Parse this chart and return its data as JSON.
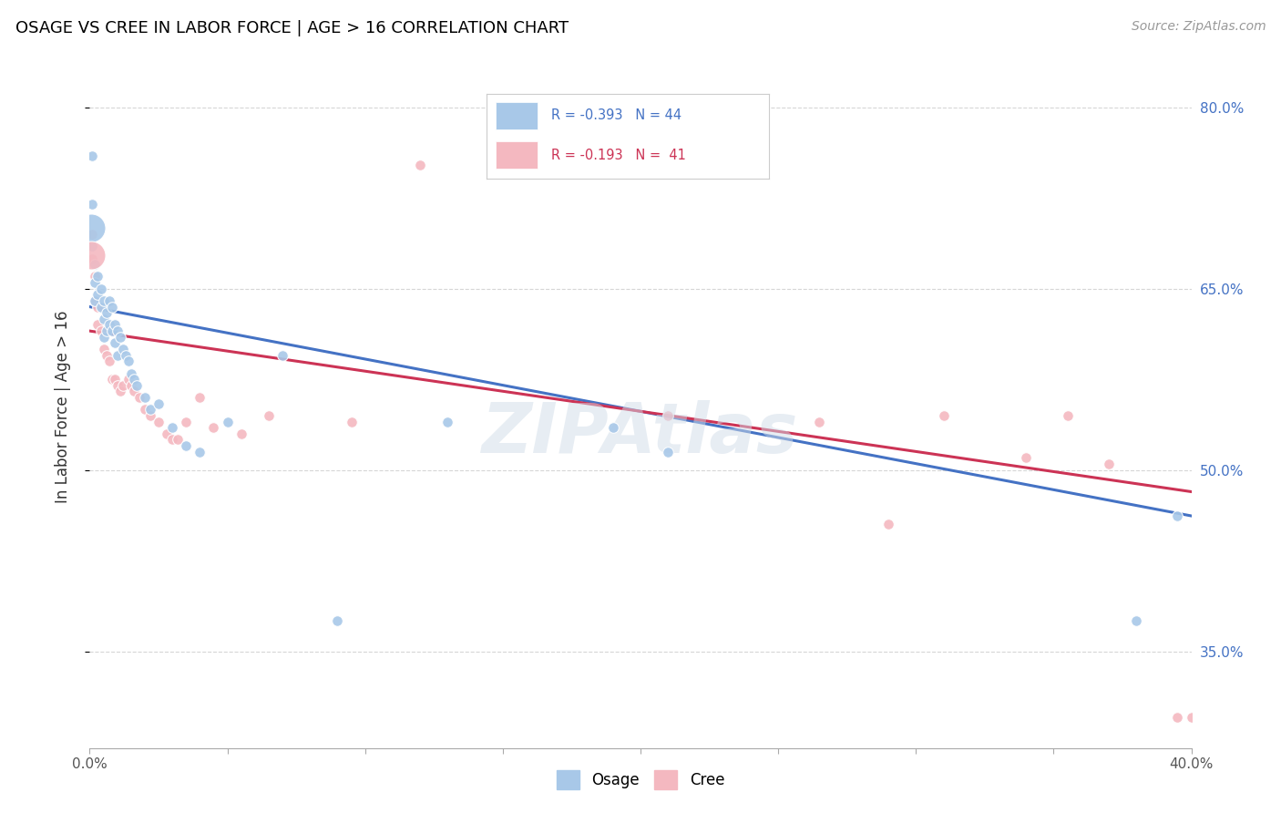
{
  "title": "OSAGE VS CREE IN LABOR FORCE | AGE > 16 CORRELATION CHART",
  "source": "Source: ZipAtlas.com",
  "ylabel": "In Labor Force | Age > 16",
  "xlim": [
    0.0,
    0.4
  ],
  "ylim": [
    0.27,
    0.835
  ],
  "xticks": [
    0.0,
    0.05,
    0.1,
    0.15,
    0.2,
    0.25,
    0.3,
    0.35,
    0.4
  ],
  "ytick_values": [
    0.35,
    0.5,
    0.65,
    0.8
  ],
  "ytick_labels": [
    "35.0%",
    "50.0%",
    "65.0%",
    "80.0%"
  ],
  "osage_color": "#a8c8e8",
  "cree_color": "#f4b8c0",
  "osage_line_color": "#4472c4",
  "cree_line_color": "#cc3355",
  "background_color": "#ffffff",
  "grid_color": "#cccccc",
  "title_color": "#000000",
  "right_tick_color": "#4472c4",
  "osage_x": [
    0.001,
    0.001,
    0.001,
    0.002,
    0.002,
    0.002,
    0.003,
    0.003,
    0.004,
    0.004,
    0.005,
    0.005,
    0.005,
    0.006,
    0.006,
    0.007,
    0.007,
    0.008,
    0.008,
    0.009,
    0.009,
    0.01,
    0.01,
    0.011,
    0.012,
    0.013,
    0.014,
    0.015,
    0.016,
    0.017,
    0.02,
    0.022,
    0.025,
    0.03,
    0.035,
    0.04,
    0.05,
    0.07,
    0.09,
    0.13,
    0.19,
    0.21,
    0.38,
    0.395
  ],
  "osage_y": [
    0.76,
    0.72,
    0.685,
    0.67,
    0.655,
    0.64,
    0.66,
    0.645,
    0.65,
    0.635,
    0.625,
    0.64,
    0.61,
    0.63,
    0.615,
    0.64,
    0.62,
    0.635,
    0.615,
    0.62,
    0.605,
    0.615,
    0.595,
    0.61,
    0.6,
    0.595,
    0.59,
    0.58,
    0.575,
    0.57,
    0.56,
    0.55,
    0.555,
    0.535,
    0.52,
    0.515,
    0.54,
    0.595,
    0.375,
    0.54,
    0.535,
    0.515,
    0.375,
    0.462
  ],
  "cree_x": [
    0.001,
    0.001,
    0.002,
    0.002,
    0.003,
    0.003,
    0.004,
    0.005,
    0.006,
    0.007,
    0.008,
    0.009,
    0.01,
    0.011,
    0.012,
    0.014,
    0.015,
    0.016,
    0.018,
    0.02,
    0.022,
    0.025,
    0.028,
    0.03,
    0.032,
    0.035,
    0.04,
    0.045,
    0.055,
    0.065,
    0.095,
    0.12,
    0.21,
    0.265,
    0.29,
    0.31,
    0.34,
    0.355,
    0.37,
    0.395,
    0.4
  ],
  "cree_y": [
    0.695,
    0.675,
    0.64,
    0.66,
    0.635,
    0.62,
    0.615,
    0.6,
    0.595,
    0.59,
    0.575,
    0.575,
    0.57,
    0.565,
    0.57,
    0.575,
    0.57,
    0.565,
    0.56,
    0.55,
    0.545,
    0.54,
    0.53,
    0.525,
    0.525,
    0.54,
    0.56,
    0.535,
    0.53,
    0.545,
    0.54,
    0.752,
    0.545,
    0.54,
    0.455,
    0.545,
    0.51,
    0.545,
    0.505,
    0.295,
    0.295
  ],
  "osage_large_x": [
    0.0005
  ],
  "osage_large_y": [
    0.7
  ],
  "osage_large_size": [
    500
  ],
  "cree_large_x": [
    0.0005
  ],
  "cree_large_y": [
    0.678
  ],
  "cree_large_size": [
    500
  ],
  "legend_osage_text": "R = -0.393   N = 44",
  "legend_cree_text": "R = -0.193   N =  41",
  "legend_osage_color_text": "#4472c4",
  "legend_cree_color_text": "#cc3355",
  "watermark_text": "ZIPAtlas",
  "dot_size": 70
}
